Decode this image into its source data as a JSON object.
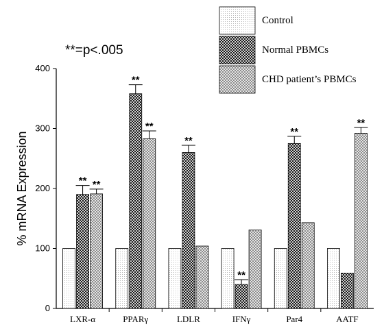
{
  "chart_data": {
    "type": "bar",
    "title": "",
    "annotation": "**=p<.005",
    "xlabel": "",
    "ylabel": "% mRNA Expression",
    "ylim": [
      0,
      400
    ],
    "yticks": [
      "0",
      "100",
      "200",
      "300",
      "400"
    ],
    "categories": [
      "LXR-α",
      "PPARγ",
      "LDLR",
      "IFNγ",
      "Par4",
      "AATF"
    ],
    "legend_position": "top-right",
    "series": [
      {
        "name": "Control",
        "pattern": "dots",
        "values": [
          100,
          100,
          100,
          100,
          100,
          100
        ],
        "errors": [
          0,
          0,
          0,
          0,
          0,
          0
        ],
        "significance": [
          "",
          "",
          "",
          "",
          "",
          ""
        ]
      },
      {
        "name": "Normal PBMCs",
        "pattern": "dark-checker",
        "values": [
          190,
          358,
          260,
          40,
          275,
          59
        ],
        "errors": [
          15,
          15,
          12,
          8,
          12,
          0
        ],
        "significance": [
          "**",
          "**",
          "**",
          "**",
          "**",
          ""
        ]
      },
      {
        "name": "CHD patient’s PBMCs",
        "pattern": "light-checker",
        "values": [
          191,
          283,
          104,
          131,
          143,
          292
        ],
        "errors": [
          8,
          13,
          0,
          0,
          0,
          10
        ],
        "significance": [
          "**",
          "**",
          "",
          "",
          "",
          "**"
        ]
      }
    ]
  }
}
